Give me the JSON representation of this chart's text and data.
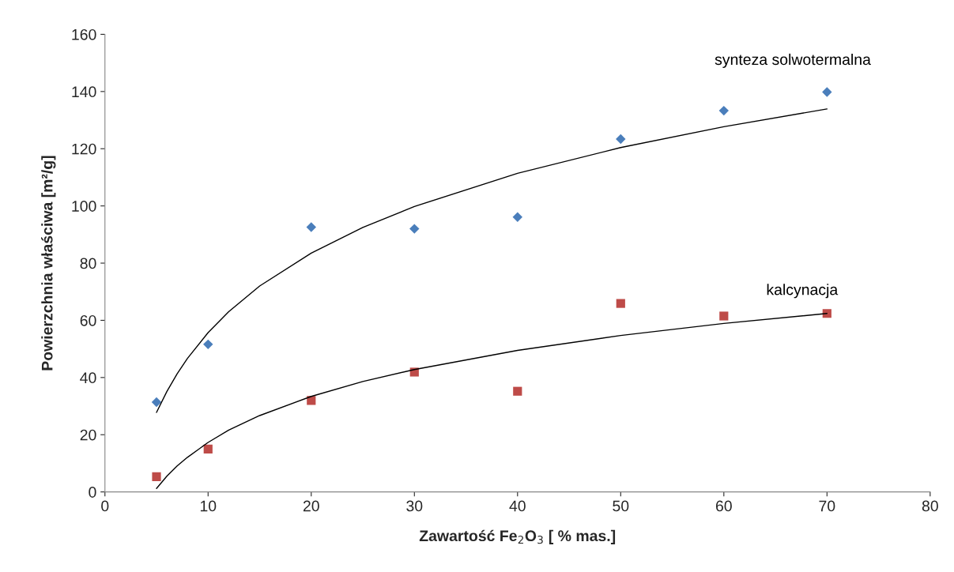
{
  "chart_data": {
    "type": "scatter",
    "xlabel": "Zawartość Fe$_{2}$O$_{3}$ [ % mas.]",
    "ylabel": "Powierzchnia właściwa [m²/g]",
    "xlim": [
      0,
      80
    ],
    "xticks": [
      0,
      10,
      20,
      30,
      40,
      50,
      60,
      70,
      80
    ],
    "ylim": [
      0,
      160
    ],
    "yticks": [
      0,
      20,
      40,
      60,
      80,
      100,
      120,
      140,
      160
    ],
    "grid": false,
    "legend": false,
    "x": [
      5,
      10,
      20,
      30,
      40,
      50,
      60,
      70
    ],
    "series": [
      {
        "name": "synteza solwotermalna",
        "color": "#4a7ebb",
        "marker": "diamond",
        "values": [
          31.4,
          51.6,
          92.6,
          92.0,
          96.1,
          123.4,
          133.3,
          139.8
        ]
      },
      {
        "name": "kalcynacja",
        "color": "#be4b48",
        "marker": "square",
        "values": [
          5.3,
          15.0,
          32.0,
          41.9,
          35.2,
          65.9,
          61.5,
          62.4
        ]
      },
      {
        "type": "line",
        "color": "#000000",
        "marker": "none",
        "x": [
          5,
          6,
          7,
          8,
          10,
          12,
          15,
          20,
          25,
          30,
          40,
          50,
          60,
          70
        ],
        "values": [
          27.8,
          35.1,
          41.3,
          46.7,
          55.7,
          63.0,
          72.0,
          83.5,
          92.5,
          99.8,
          111.4,
          120.4,
          127.7,
          133.9
        ]
      },
      {
        "type": "line",
        "color": "#000000",
        "marker": "none",
        "x": [
          5,
          6,
          7,
          8,
          10,
          12,
          15,
          20,
          25,
          30,
          40,
          50,
          60,
          70
        ],
        "values": [
          1.2,
          5.5,
          9.1,
          12.1,
          17.3,
          21.6,
          26.7,
          33.4,
          38.6,
          42.8,
          49.5,
          54.7,
          58.9,
          62.4
        ]
      }
    ]
  }
}
